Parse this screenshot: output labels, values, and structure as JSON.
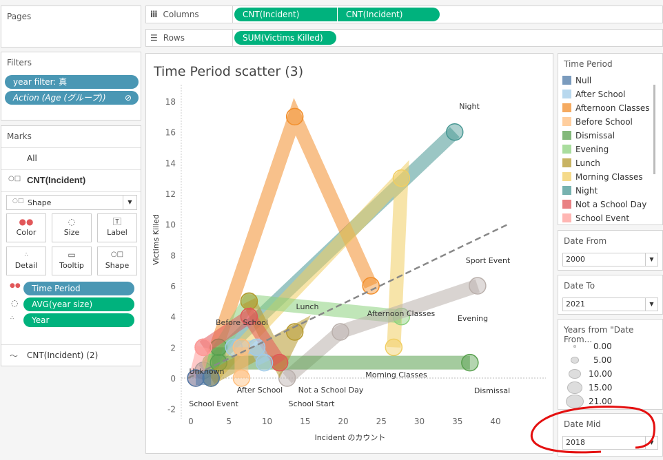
{
  "pages": {
    "title": "Pages"
  },
  "filters": {
    "title": "Filters",
    "items": [
      {
        "label": "year filter: 真"
      },
      {
        "label": "Action (Age (グループ))"
      }
    ]
  },
  "marks": {
    "title": "Marks",
    "all": "All",
    "layer1": "CNT(Incident)",
    "mark_type": "Shape",
    "cards": [
      {
        "label": "Color",
        "icon": "color-dots-icon"
      },
      {
        "label": "Size",
        "icon": "size-icon"
      },
      {
        "label": "Label",
        "icon": "label-icon"
      },
      {
        "label": "Detail",
        "icon": "detail-icon"
      },
      {
        "label": "Tooltip",
        "icon": "tooltip-icon"
      },
      {
        "label": "Shape",
        "icon": "shape-icon"
      }
    ],
    "fields": [
      {
        "label": "Time Period",
        "color": "#4a97b4"
      },
      {
        "label": "AVG(year size)",
        "color": "#00b27d"
      },
      {
        "label": "Year",
        "color": "#00b27d"
      }
    ],
    "layer2": "CNT(Incident) (2)"
  },
  "shelves": {
    "columns_label": "Columns",
    "columns": [
      "CNT(Incident)",
      "CNT(Incident)"
    ],
    "rows_label": "Rows",
    "rows": [
      "SUM(Victims Killed)"
    ]
  },
  "legend": {
    "title": "Time Period",
    "items": [
      {
        "label": "Null",
        "color": "#4e79a7"
      },
      {
        "label": "After School",
        "color": "#a0cbe8"
      },
      {
        "label": "Afternoon Classes",
        "color": "#f28e2b"
      },
      {
        "label": "Before School",
        "color": "#ffbe7d"
      },
      {
        "label": "Dismissal",
        "color": "#59a14f"
      },
      {
        "label": "Evening",
        "color": "#8cd17d"
      },
      {
        "label": "Lunch",
        "color": "#b6992d"
      },
      {
        "label": "Morning Classes",
        "color": "#f1ce63"
      },
      {
        "label": "Night",
        "color": "#499894"
      },
      {
        "label": "Not a School Day",
        "color": "#e15759"
      },
      {
        "label": "School Event",
        "color": "#ff9d9a"
      }
    ]
  },
  "date_from": {
    "title": "Date From",
    "value": "2000"
  },
  "date_to": {
    "title": "Date To",
    "value": "2021"
  },
  "size_legend": {
    "title": "Years from \"Date From...",
    "items": [
      "0.00",
      "5.00",
      "10.00",
      "15.00",
      "21.00"
    ]
  },
  "date_mid": {
    "title": "Date Mid",
    "value": "2018"
  },
  "chart_data": {
    "type": "scatter",
    "title": "Time Period scatter (3)",
    "xlabel": "Incident のカウント",
    "ylabel": "Victims Killed",
    "xlim": [
      0,
      42
    ],
    "ylim": [
      -2,
      19
    ],
    "xticks": [
      "0",
      "5",
      "10",
      "15",
      "20",
      "25",
      "30",
      "35",
      "40"
    ],
    "yticks": [
      "-2",
      "0",
      "2",
      "4",
      "6",
      "8",
      "10",
      "12",
      "14",
      "16",
      "18"
    ],
    "trendline": {
      "style": "dashed",
      "color": "#888888",
      "points": [
        [
          0,
          0
        ],
        [
          42,
          10
        ]
      ]
    },
    "series": [
      {
        "name": "Night",
        "color": "#499894",
        "points": [
          [
            2,
            0.5
          ],
          [
            35,
            16
          ]
        ]
      },
      {
        "name": "Afternoon Classes",
        "color": "#f28e2b",
        "points": [
          [
            3,
            1
          ],
          [
            14,
            17
          ],
          [
            24,
            6
          ]
        ]
      },
      {
        "name": "Morning Classes",
        "color": "#f1ce63",
        "points": [
          [
            3,
            0
          ],
          [
            28,
            13
          ],
          [
            27,
            2
          ]
        ]
      },
      {
        "name": "Evening",
        "color": "#8cd17d",
        "points": [
          [
            3,
            1
          ],
          [
            8,
            5
          ],
          [
            28,
            4
          ]
        ]
      },
      {
        "name": "Sport Event",
        "color": "#bab0ac",
        "points": [
          [
            13,
            0
          ],
          [
            20,
            3
          ],
          [
            38,
            6
          ]
        ]
      },
      {
        "name": "Dismissal",
        "color": "#59a14f",
        "points": [
          [
            4,
            2
          ],
          [
            4,
            1
          ],
          [
            37,
            1
          ]
        ]
      },
      {
        "name": "Lunch",
        "color": "#b6992d",
        "points": [
          [
            3,
            0
          ],
          [
            14,
            3
          ],
          [
            12,
            1
          ],
          [
            8,
            5
          ]
        ]
      },
      {
        "name": "Not a School Day",
        "color": "#e15759",
        "points": [
          [
            2,
            2
          ],
          [
            8,
            4
          ],
          [
            12,
            1
          ]
        ]
      },
      {
        "name": "After School",
        "color": "#a0cbe8",
        "points": [
          [
            6,
            2
          ],
          [
            9,
            2
          ],
          [
            10,
            1
          ]
        ]
      },
      {
        "name": "Before School",
        "color": "#ffbe7d",
        "points": [
          [
            7,
            0
          ],
          [
            7,
            2
          ]
        ]
      },
      {
        "name": "School Event",
        "color": "#ff9d9a",
        "points": [
          [
            1,
            0
          ],
          [
            2,
            2
          ]
        ]
      },
      {
        "name": "Null",
        "color": "#4e79a7",
        "points": [
          [
            1,
            0
          ],
          [
            3,
            0
          ]
        ]
      }
    ],
    "labels": [
      "Night",
      "Sport Event",
      "Lunch",
      "Afternoon Classes",
      "Evening",
      "Before School",
      "Unknown",
      "Morning Classes",
      "After School",
      "Not a School Day",
      "Dismissal",
      "School Event",
      "School Start"
    ]
  }
}
